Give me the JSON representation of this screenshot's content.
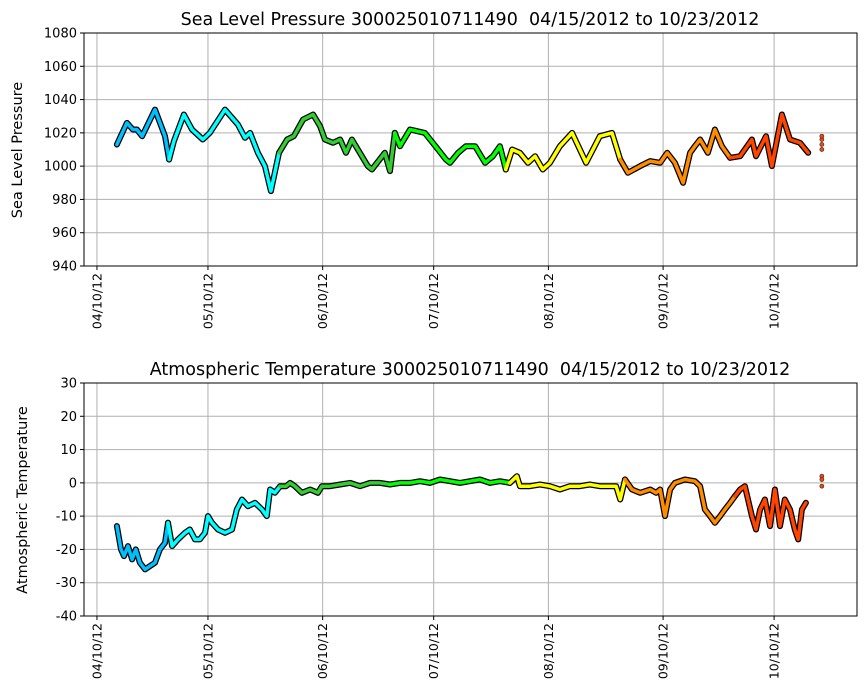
{
  "chart_data": [
    {
      "type": "line",
      "title": "Sea Level Pressure 300025010711490  04/15/2012 to 10/23/2012",
      "xlabel": "",
      "ylabel": "Sea Level Pressure",
      "x_unit": "days since 04/10/2012",
      "xlim": [
        -3.5,
        205.4
      ],
      "ylim": [
        940,
        1080
      ],
      "yticks": [
        940,
        960,
        980,
        1000,
        1020,
        1040,
        1060,
        1080
      ],
      "xticks": [
        {
          "day": 0,
          "label": "04/10/12"
        },
        {
          "day": 30,
          "label": "05/10/12"
        },
        {
          "day": 61,
          "label": "06/10/12"
        },
        {
          "day": 91,
          "label": "07/10/12"
        },
        {
          "day": 122,
          "label": "08/10/12"
        },
        {
          "day": 153,
          "label": "09/10/12"
        },
        {
          "day": 183,
          "label": "10/10/12"
        }
      ],
      "grid": true,
      "segment_colors": {
        "Apr": "#00bfff",
        "May": "#00ffff",
        "Jun": "#32cd32",
        "Jul": "#00ff00",
        "Aug": "#ffff00",
        "Sep": "#ff8c00",
        "Oct": "#ff4500"
      },
      "series_points": [
        [
          5.4,
          1013
        ],
        [
          8.1,
          1026
        ],
        [
          9.7,
          1022
        ],
        [
          10.8,
          1022
        ],
        [
          12.2,
          1018
        ],
        [
          15.7,
          1034
        ],
        [
          18.4,
          1018
        ],
        [
          19.5,
          1004
        ],
        [
          20.8,
          1015
        ],
        [
          23.5,
          1031
        ],
        [
          25.7,
          1022
        ],
        [
          28.6,
          1016
        ],
        [
          30.5,
          1020
        ],
        [
          34.6,
          1034
        ],
        [
          38.1,
          1025
        ],
        [
          40.0,
          1017
        ],
        [
          41.4,
          1020
        ],
        [
          43.5,
          1008
        ],
        [
          45.4,
          1000
        ],
        [
          47.0,
          985
        ],
        [
          49.2,
          1008
        ],
        [
          51.4,
          1016
        ],
        [
          53.2,
          1018
        ],
        [
          55.7,
          1028
        ],
        [
          58.4,
          1031
        ],
        [
          60.3,
          1024
        ],
        [
          61.6,
          1016
        ],
        [
          63.8,
          1014
        ],
        [
          65.7,
          1016
        ],
        [
          67.3,
          1008
        ],
        [
          68.9,
          1016
        ],
        [
          73.2,
          1000
        ],
        [
          74.3,
          998
        ],
        [
          77.8,
          1008
        ],
        [
          79.2,
          997
        ],
        [
          80.5,
          1020
        ],
        [
          81.9,
          1012
        ],
        [
          84.6,
          1022
        ],
        [
          88.6,
          1020
        ],
        [
          92.2,
          1010
        ],
        [
          94.3,
          1004
        ],
        [
          95.4,
          1002
        ],
        [
          97.6,
          1008
        ],
        [
          99.7,
          1012
        ],
        [
          102.2,
          1012
        ],
        [
          104.9,
          1002
        ],
        [
          107.0,
          1006
        ],
        [
          108.9,
          1012
        ],
        [
          110.5,
          998
        ],
        [
          112.2,
          1010
        ],
        [
          114.3,
          1008
        ],
        [
          116.5,
          1002
        ],
        [
          118.4,
          1006
        ],
        [
          120.5,
          998
        ],
        [
          122.4,
          1002
        ],
        [
          125.1,
          1012
        ],
        [
          128.4,
          1020
        ],
        [
          132.2,
          1002
        ],
        [
          135.9,
          1018
        ],
        [
          139.2,
          1020
        ],
        [
          141.4,
          1004
        ],
        [
          143.5,
          996
        ],
        [
          146.8,
          1000
        ],
        [
          149.5,
          1003
        ],
        [
          152.2,
          1002
        ],
        [
          154.1,
          1008
        ],
        [
          156.2,
          1002
        ],
        [
          158.4,
          990
        ],
        [
          160.3,
          1008
        ],
        [
          161.6,
          1012
        ],
        [
          163.0,
          1016
        ],
        [
          165.1,
          1008
        ],
        [
          167.0,
          1022
        ],
        [
          168.9,
          1012
        ],
        [
          171.1,
          1005
        ],
        [
          173.8,
          1006
        ],
        [
          177.0,
          1016
        ],
        [
          178.1,
          1006
        ],
        [
          180.8,
          1018
        ],
        [
          182.4,
          1000
        ],
        [
          185.1,
          1031
        ],
        [
          187.3,
          1016
        ],
        [
          190.0,
          1014
        ],
        [
          192.2,
          1008
        ]
      ],
      "end_points": [
        [
          195.9,
          1010
        ],
        [
          195.9,
          1013
        ],
        [
          195.9,
          1016
        ],
        [
          195.9,
          1018
        ]
      ]
    },
    {
      "type": "line",
      "title": "Atmospheric Temperature 300025010711490  04/15/2012 to 10/23/2012",
      "xlabel": "",
      "ylabel": "Atmospheric Temperature",
      "x_unit": "days since 04/10/2012",
      "xlim": [
        -3.5,
        205.4
      ],
      "ylim": [
        -40,
        30
      ],
      "yticks": [
        -40,
        -30,
        -20,
        -10,
        0,
        10,
        20,
        30
      ],
      "xticks": [
        {
          "day": 0,
          "label": "04/10/12"
        },
        {
          "day": 30,
          "label": "05/10/12"
        },
        {
          "day": 61,
          "label": "06/10/12"
        },
        {
          "day": 91,
          "label": "07/10/12"
        },
        {
          "day": 122,
          "label": "08/10/12"
        },
        {
          "day": 153,
          "label": "09/10/12"
        },
        {
          "day": 183,
          "label": "10/10/12"
        }
      ],
      "grid": true,
      "segment_colors": {
        "Apr": "#00bfff",
        "May": "#00ffff",
        "Jun": "#32cd32",
        "Jul": "#00ff00",
        "Aug": "#ffff00",
        "Sep": "#ff8c00",
        "Oct": "#ff4500"
      },
      "series_points": [
        [
          5.4,
          -13
        ],
        [
          6.5,
          -20
        ],
        [
          7.3,
          -22
        ],
        [
          8.4,
          -19
        ],
        [
          9.5,
          -23
        ],
        [
          10.5,
          -20
        ],
        [
          11.6,
          -24
        ],
        [
          13.0,
          -26
        ],
        [
          14.3,
          -25
        ],
        [
          15.7,
          -24
        ],
        [
          17.0,
          -20
        ],
        [
          18.4,
          -18
        ],
        [
          19.2,
          -12
        ],
        [
          20.3,
          -19
        ],
        [
          21.9,
          -17
        ],
        [
          23.8,
          -15
        ],
        [
          25.1,
          -14
        ],
        [
          26.5,
          -17
        ],
        [
          27.8,
          -17
        ],
        [
          29.2,
          -15
        ],
        [
          30.0,
          -10
        ],
        [
          31.1,
          -12
        ],
        [
          32.7,
          -14
        ],
        [
          34.6,
          -15
        ],
        [
          36.5,
          -14
        ],
        [
          37.8,
          -8
        ],
        [
          39.2,
          -5
        ],
        [
          40.8,
          -7
        ],
        [
          42.7,
          -6
        ],
        [
          44.6,
          -8
        ],
        [
          45.9,
          -10
        ],
        [
          46.8,
          -2
        ],
        [
          48.1,
          -3
        ],
        [
          49.5,
          -1
        ],
        [
          51.1,
          -1
        ],
        [
          52.2,
          0
        ],
        [
          53.5,
          -1
        ],
        [
          55.4,
          -3
        ],
        [
          57.6,
          -2
        ],
        [
          59.7,
          -3
        ],
        [
          60.8,
          -1
        ],
        [
          63.0,
          -1
        ],
        [
          65.7,
          -0.5
        ],
        [
          68.4,
          0
        ],
        [
          71.1,
          -1
        ],
        [
          73.8,
          0
        ],
        [
          76.5,
          0
        ],
        [
          79.2,
          -0.5
        ],
        [
          81.9,
          0
        ],
        [
          84.6,
          0
        ],
        [
          87.3,
          0.5
        ],
        [
          90.0,
          0
        ],
        [
          92.7,
          1
        ],
        [
          95.4,
          0.5
        ],
        [
          98.1,
          0
        ],
        [
          100.8,
          0.5
        ],
        [
          103.5,
          1
        ],
        [
          106.2,
          0
        ],
        [
          108.9,
          0.5
        ],
        [
          111.6,
          0
        ],
        [
          113.5,
          2
        ],
        [
          114.3,
          -1
        ],
        [
          117.0,
          -1
        ],
        [
          119.7,
          -0.5
        ],
        [
          122.4,
          -1
        ],
        [
          125.1,
          -2
        ],
        [
          127.8,
          -1
        ],
        [
          130.5,
          -1
        ],
        [
          133.2,
          -0.5
        ],
        [
          135.9,
          -1
        ],
        [
          138.6,
          -1
        ],
        [
          140.3,
          -1
        ],
        [
          141.4,
          -5
        ],
        [
          142.7,
          1
        ],
        [
          144.6,
          -2
        ],
        [
          146.8,
          -3
        ],
        [
          149.5,
          -2
        ],
        [
          151.1,
          -3
        ],
        [
          152.2,
          -2
        ],
        [
          153.5,
          -10
        ],
        [
          154.9,
          -2
        ],
        [
          156.2,
          0
        ],
        [
          158.9,
          1
        ],
        [
          161.6,
          0.5
        ],
        [
          163.0,
          -1
        ],
        [
          164.3,
          -8
        ],
        [
          165.7,
          -10
        ],
        [
          167.0,
          -12
        ],
        [
          168.4,
          -10
        ],
        [
          169.7,
          -8
        ],
        [
          171.1,
          -6
        ],
        [
          172.4,
          -4
        ],
        [
          173.8,
          -2
        ],
        [
          175.1,
          -1
        ],
        [
          177.0,
          -10
        ],
        [
          178.1,
          -14
        ],
        [
          179.2,
          -8
        ],
        [
          180.5,
          -5
        ],
        [
          181.9,
          -13
        ],
        [
          183.2,
          -2
        ],
        [
          184.6,
          -13
        ],
        [
          185.9,
          -5
        ],
        [
          187.3,
          -8
        ],
        [
          188.6,
          -14
        ],
        [
          189.5,
          -17
        ],
        [
          190.5,
          -8
        ],
        [
          191.6,
          -6
        ]
      ],
      "end_points": [
        [
          195.9,
          2
        ],
        [
          195.9,
          1
        ],
        [
          195.9,
          -1
        ]
      ]
    }
  ]
}
